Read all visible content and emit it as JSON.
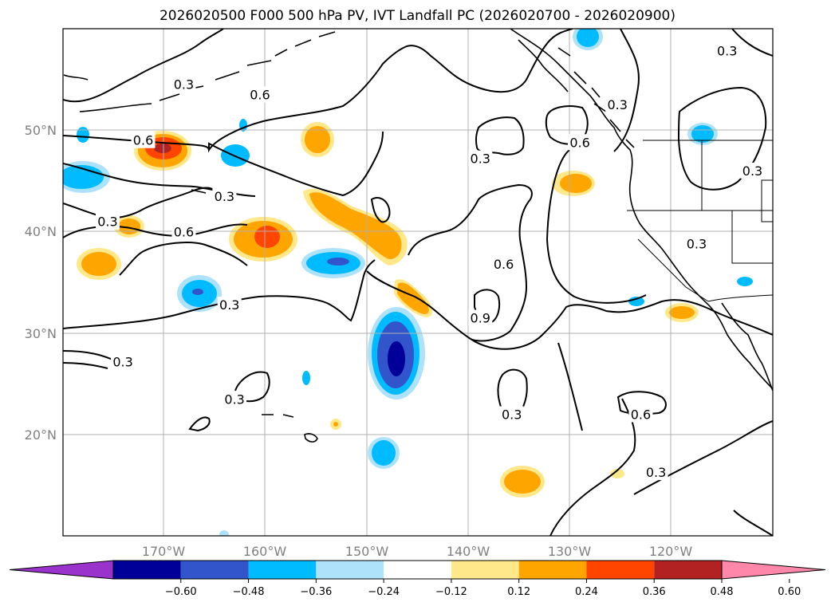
{
  "title": "2026020500 F000 500 hPa PV, IVT Landfall PC (2026020700 - 2026020900)",
  "map": {
    "lon_ticks": [
      "170°W",
      "160°W",
      "150°W",
      "140°W",
      "130°W",
      "120°W"
    ],
    "lat_ticks": [
      "50°N",
      "40°N",
      "30°N",
      "20°N"
    ],
    "gridlines": true
  },
  "contour_labels": [
    {
      "text": "0.3",
      "lon": -168.0,
      "lat": 54.5
    },
    {
      "text": "0.6",
      "lon": -160.5,
      "lat": 53.5
    },
    {
      "text": "0.6",
      "lon": -172.0,
      "lat": 49.0
    },
    {
      "text": "0.3",
      "lon": -164.0,
      "lat": 43.5
    },
    {
      "text": "0.3",
      "lon": -175.5,
      "lat": 41.0
    },
    {
      "text": "0.6",
      "lon": -168.0,
      "lat": 40.0
    },
    {
      "text": "0.3",
      "lon": -163.5,
      "lat": 32.8
    },
    {
      "text": "0.3",
      "lon": -174.0,
      "lat": 27.2
    },
    {
      "text": "0.3",
      "lon": -163.0,
      "lat": 23.5
    },
    {
      "text": "0.3",
      "lon": -138.8,
      "lat": 47.2
    },
    {
      "text": "0.6",
      "lon": -129.0,
      "lat": 48.8
    },
    {
      "text": "0.3",
      "lon": -125.3,
      "lat": 52.5
    },
    {
      "text": "0.3",
      "lon": -114.5,
      "lat": 57.8
    },
    {
      "text": "0.3",
      "lon": -112.0,
      "lat": 46.0
    },
    {
      "text": "0.3",
      "lon": -117.5,
      "lat": 38.8
    },
    {
      "text": "0.6",
      "lon": -136.5,
      "lat": 36.8
    },
    {
      "text": "0.9",
      "lon": -138.8,
      "lat": 31.5
    },
    {
      "text": "0.3",
      "lon": -135.7,
      "lat": 22.0
    },
    {
      "text": "0.6",
      "lon": -123.0,
      "lat": 22.0
    },
    {
      "text": "0.3",
      "lon": -121.5,
      "lat": 16.3
    }
  ],
  "colorbar": {
    "colors": [
      "#9933cc",
      "#000099",
      "#3355cc",
      "#00bbff",
      "#aee2fa",
      "#ffffff",
      "#ffe88a",
      "#ffa500",
      "#ff4500",
      "#b22222",
      "#ff88aa"
    ],
    "ticks": [
      "−0.60",
      "−0.48",
      "−0.36",
      "−0.24",
      "−0.12",
      "0.12",
      "0.24",
      "0.36",
      "0.48",
      "0.60"
    ]
  }
}
